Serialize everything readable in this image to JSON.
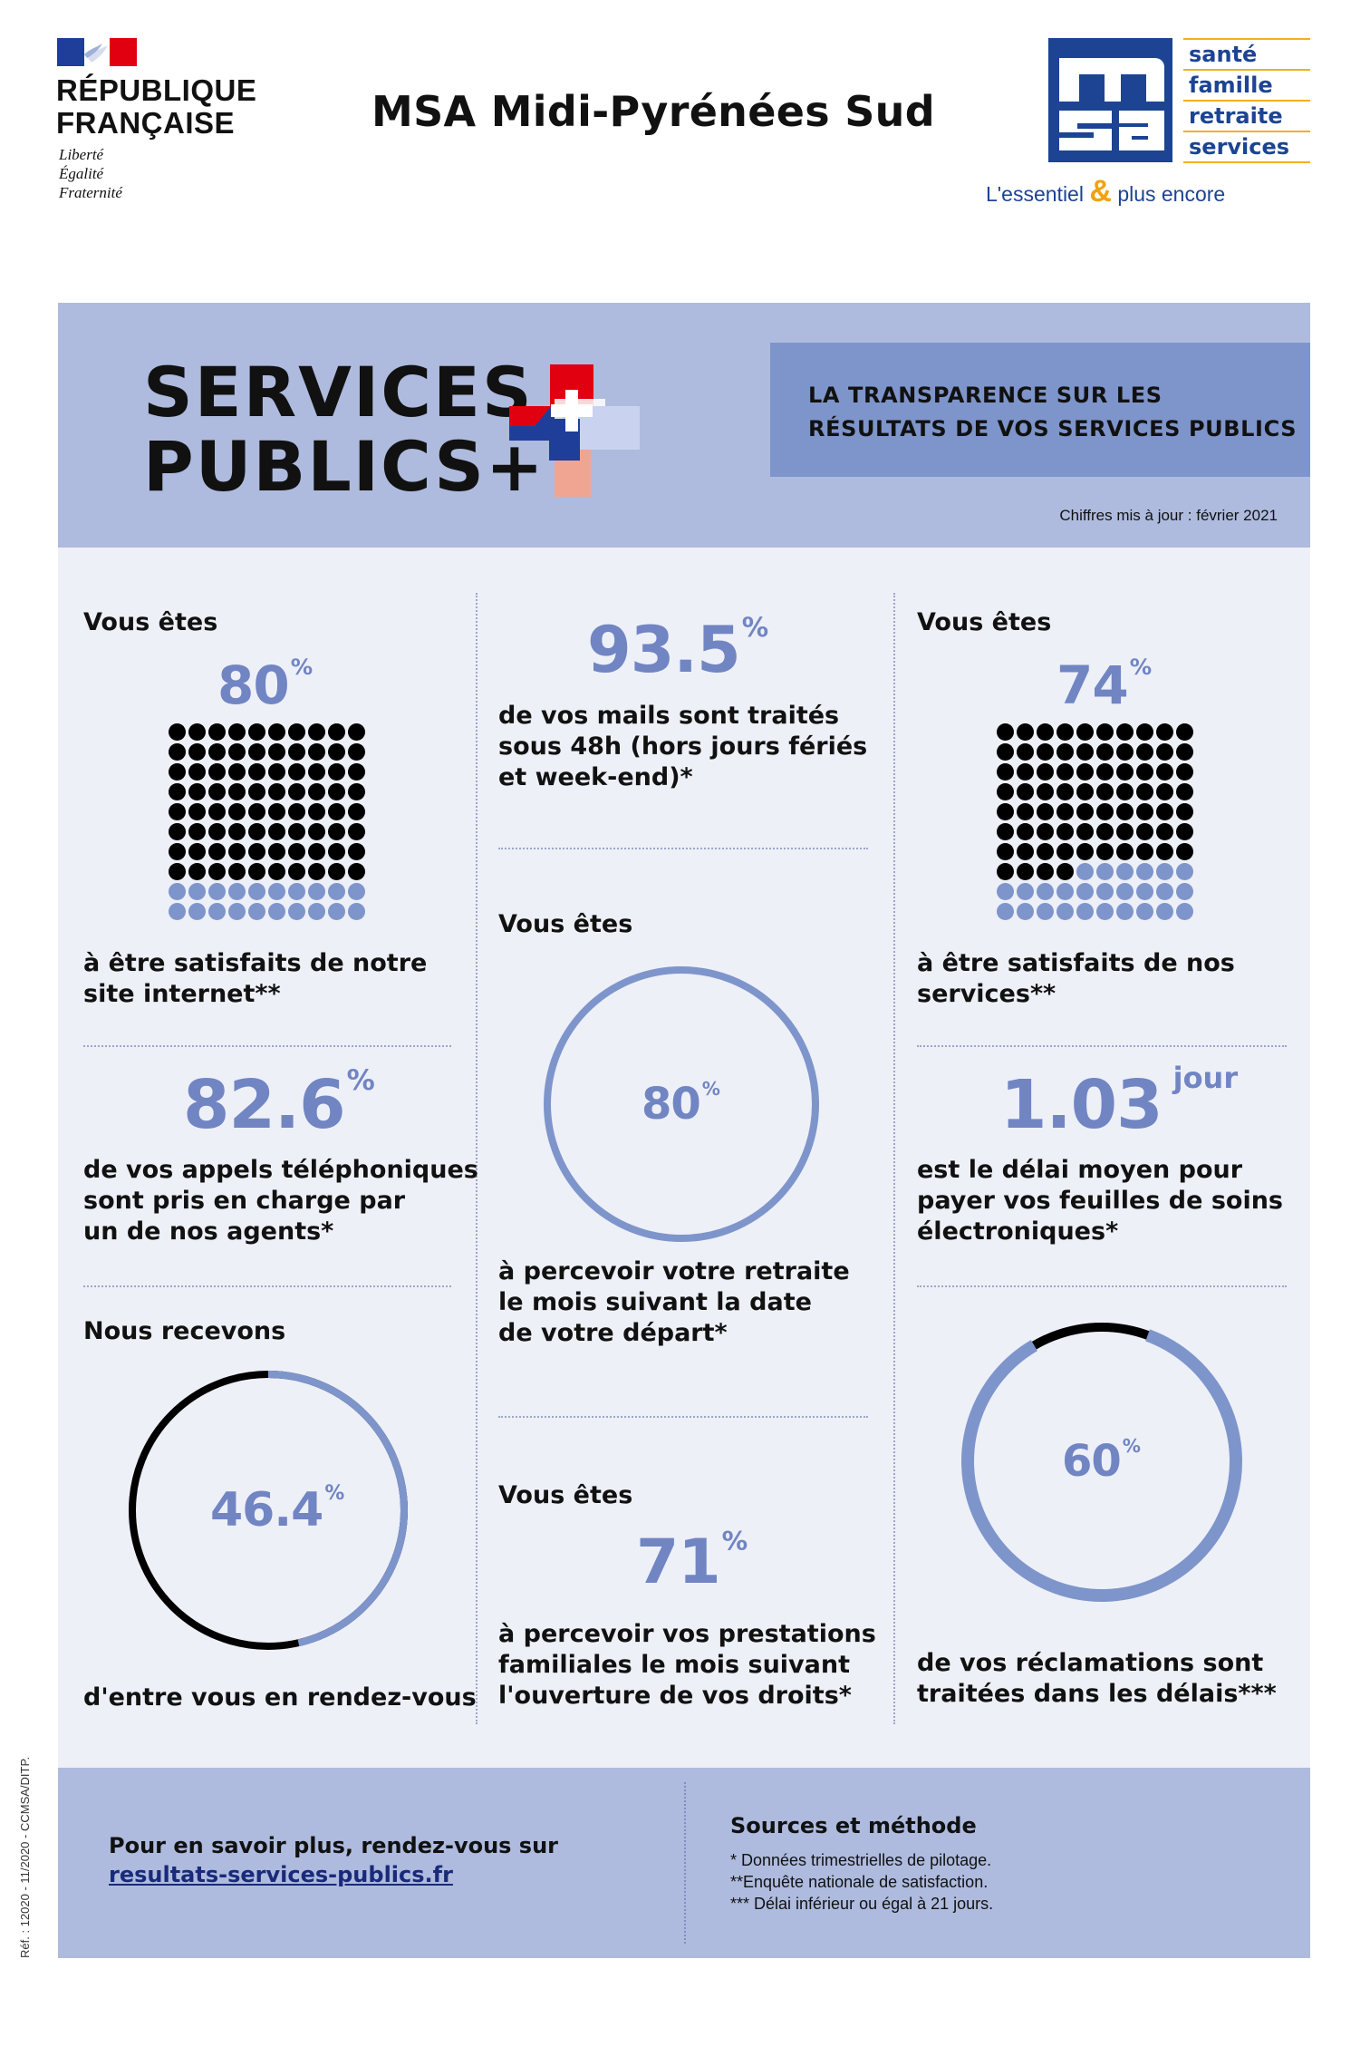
{
  "header": {
    "republic_line1": "RÉPUBLIQUE",
    "republic_line2": "FRANÇAISE",
    "motto": [
      "Liberté",
      "Égalité",
      "Fraternité"
    ],
    "org_title": "MSA Midi-Pyrénées Sud",
    "msa_logo_text": "msa",
    "msa_tags": [
      "santé",
      "famille",
      "retraite",
      "services"
    ],
    "msa_slogan_left": "L'essentiel",
    "msa_slogan_amp": "&",
    "msa_slogan_right": "plus encore"
  },
  "banner": {
    "title_line1": "SERVICES",
    "title_line2": "PUBLICS+",
    "transparency_line1": "LA TRANSPARENCE SUR LES",
    "transparency_line2": "RÉSULTATS DE VOS SERVICES PUBLICS",
    "updated": "Chiffres mis à jour : février 2021"
  },
  "stats": {
    "website": {
      "intro": "Vous êtes",
      "value": "80",
      "unit": "%",
      "percent": 80,
      "desc_line1": "à être satisfaits de notre",
      "desc_line2": "site internet**"
    },
    "calls": {
      "value": "82.6",
      "unit": "%",
      "desc": [
        "de vos appels téléphoniques",
        "sont pris en charge par",
        "un de nos agents*"
      ]
    },
    "appointments": {
      "intro": "Nous recevons",
      "value": "46.4",
      "unit": "%",
      "percent": 46.4,
      "desc": "d'entre vous en rendez-vous"
    },
    "mails": {
      "value": "93.5",
      "unit": "%",
      "desc": [
        "de vos mails sont traités",
        "sous 48h (hors jours fériés",
        "et week-end)*"
      ]
    },
    "retirement": {
      "intro": "Vous êtes",
      "value": "80",
      "unit": "%",
      "percent": 80,
      "desc": [
        "à percevoir votre retraite",
        "le mois suivant la date",
        "de votre départ*"
      ]
    },
    "family": {
      "intro": "Vous êtes",
      "value": "71",
      "unit": "%",
      "desc": [
        "à percevoir vos prestations",
        "familiales le mois suivant",
        "l'ouverture de vos droits*"
      ]
    },
    "services": {
      "intro": "Vous êtes",
      "value": "74",
      "unit": "%",
      "percent": 74,
      "desc_line1": "à être satisfaits de nos",
      "desc_line2": "services**"
    },
    "payment": {
      "value": "1.03",
      "unit": "jour",
      "desc": [
        "est le délai moyen pour",
        "payer vos feuilles de soins",
        "électroniques*"
      ]
    },
    "claims": {
      "value": "60",
      "unit": "%",
      "percent": 60,
      "desc": [
        "de vos réclamations sont",
        "traitées dans les délais***"
      ]
    }
  },
  "footer": {
    "more_info": "Pour en savoir plus, rendez-vous sur",
    "link": "resultats-services-publics.fr",
    "sources_title": "Sources et méthode",
    "sources": [
      "* Données trimestrielles de pilotage.",
      "**Enquête nationale de satisfaction.",
      "*** Délai inférieur ou égal à 21 jours."
    ],
    "reference": "Réf. : 12020 - 11/2020 - CCMSA/DITP."
  },
  "colors": {
    "accent": "#7185c3",
    "ring": "#7e95cb",
    "banner": "#aebbde",
    "content_bg": "#eef0f8",
    "msa_blue": "#1c4493",
    "msa_gold": "#f2b01e"
  }
}
